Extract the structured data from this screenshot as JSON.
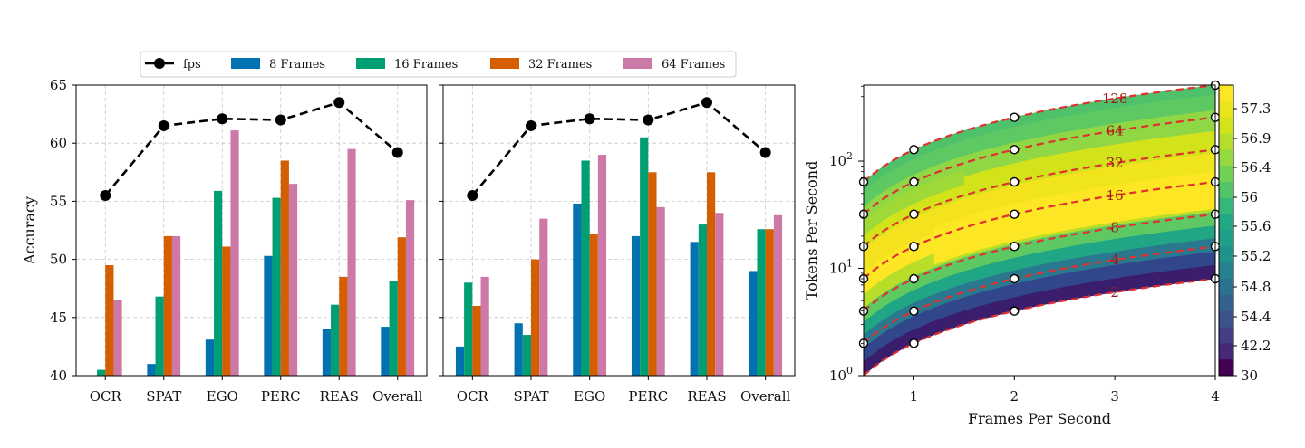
{
  "chart_data": [
    {
      "type": "bar",
      "ylabel": "Accuracy",
      "xlabel": "",
      "ylim": [
        40,
        65
      ],
      "yticks": [
        40,
        45,
        50,
        55,
        60,
        65
      ],
      "grid": true,
      "legend_position": "top",
      "categories": [
        "OCR",
        "SPAT",
        "EGO",
        "PERC",
        "REAS",
        "Overall"
      ],
      "series": [
        {
          "name": "8 Frames",
          "color": "#0072b2",
          "values": [
            40.0,
            41.0,
            43.1,
            50.3,
            44.0,
            44.2
          ]
        },
        {
          "name": "16 Frames",
          "color": "#009e73",
          "values": [
            40.5,
            46.8,
            55.9,
            55.3,
            46.1,
            48.1
          ]
        },
        {
          "name": "32 Frames",
          "color": "#d55e00",
          "values": [
            49.5,
            52.0,
            51.1,
            58.5,
            48.5,
            51.9
          ]
        },
        {
          "name": "64 Frames",
          "color": "#cc79a7",
          "values": [
            46.5,
            52.0,
            61.1,
            56.5,
            59.5,
            55.1
          ]
        }
      ],
      "line": {
        "name": "fps",
        "color": "#000000",
        "values": [
          55.5,
          61.5,
          62.1,
          62.0,
          63.5,
          59.2
        ]
      }
    },
    {
      "type": "bar",
      "ylabel": "",
      "xlabel": "",
      "ylim": [
        40,
        65
      ],
      "grid": true,
      "categories": [
        "OCR",
        "SPAT",
        "EGO",
        "PERC",
        "REAS",
        "Overall"
      ],
      "series": [
        {
          "name": "8 Frames",
          "color": "#0072b2",
          "values": [
            42.5,
            44.5,
            54.8,
            52.0,
            51.5,
            49.0
          ]
        },
        {
          "name": "16 Frames",
          "color": "#009e73",
          "values": [
            48.0,
            43.5,
            58.5,
            60.5,
            53.0,
            52.6
          ]
        },
        {
          "name": "32 Frames",
          "color": "#d55e00",
          "values": [
            46.0,
            50.0,
            52.2,
            57.5,
            57.5,
            52.6
          ]
        },
        {
          "name": "64 Frames",
          "color": "#cc79a7",
          "values": [
            48.5,
            53.5,
            59.0,
            54.5,
            54.0,
            53.8
          ]
        }
      ],
      "line": {
        "name": "fps",
        "color": "#000000",
        "values": [
          55.5,
          61.5,
          62.1,
          62.0,
          63.5,
          59.2
        ]
      }
    },
    {
      "type": "heatmap",
      "xlabel": "Frames Per Second",
      "ylabel": "Tokens Per Second",
      "xlim": [
        0.5,
        4
      ],
      "xticks": [
        1,
        2,
        3,
        4
      ],
      "ylim": [
        1,
        512
      ],
      "yscale": "log",
      "yticks": [
        1,
        10,
        100
      ],
      "ytick_labels": [
        "10^0",
        "10^1",
        "10^2"
      ],
      "contour_levels": [
        2,
        4,
        8,
        16,
        32,
        64,
        128
      ],
      "contour_color": "#e03030",
      "colorbar": {
        "ticks": [
          57.3,
          56.9,
          56.4,
          56.0,
          55.6,
          55.2,
          54.8,
          54.4,
          42.2,
          30.0
        ],
        "colors_top_to_bottom": [
          "#fde725",
          "#e9e51a",
          "#d2e21b",
          "#b5de2b",
          "#95d840",
          "#73d056",
          "#52c569",
          "#35b779",
          "#22a884",
          "#1f9e89",
          "#21918c",
          "#26828e",
          "#2c728e",
          "#33638d",
          "#3b528b",
          "#433e85",
          "#482878",
          "#440154"
        ]
      },
      "points_fps": [
        0.5,
        1,
        2,
        4
      ],
      "points_tokens_per_frame": [
        2,
        4,
        8,
        16,
        32,
        64,
        128
      ]
    }
  ],
  "legend": {
    "entries": [
      {
        "label": "fps",
        "color": "#000000",
        "kind": "line"
      },
      {
        "label": "8 Frames",
        "color": "#0072b2",
        "kind": "patch"
      },
      {
        "label": "16 Frames",
        "color": "#009e73",
        "kind": "patch"
      },
      {
        "label": "32 Frames",
        "color": "#d55e00",
        "kind": "patch"
      },
      {
        "label": "64 Frames",
        "color": "#cc79a7",
        "kind": "patch"
      }
    ]
  }
}
